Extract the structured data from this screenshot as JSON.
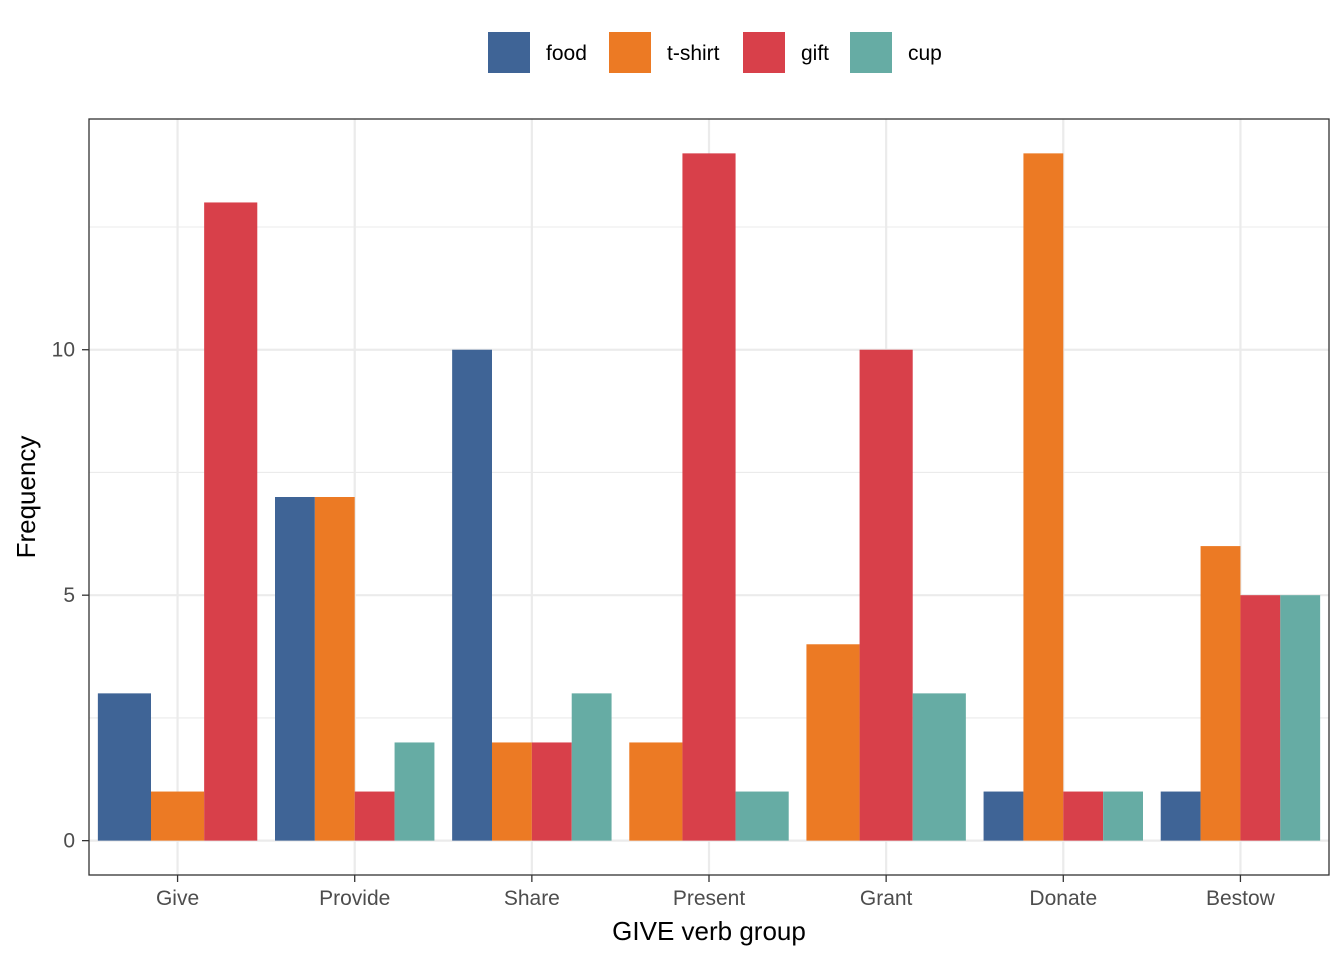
{
  "chart_data": {
    "type": "bar",
    "title": "",
    "xlabel": "GIVE verb group",
    "ylabel": "Frequency",
    "categories": [
      "Give",
      "Provide",
      "Share",
      "Present",
      "Grant",
      "Donate",
      "Bestow"
    ],
    "series": [
      {
        "name": "food",
        "color": "#3F6496",
        "values": [
          3,
          7,
          10,
          null,
          null,
          1,
          1
        ]
      },
      {
        "name": "t-shirt",
        "color": "#EC7A24",
        "values": [
          1,
          7,
          2,
          2,
          4,
          14,
          6
        ]
      },
      {
        "name": "gift",
        "color": "#D8404A",
        "values": [
          13,
          1,
          2,
          14,
          10,
          1,
          5
        ]
      },
      {
        "name": "cup",
        "color": "#66ACA4",
        "values": [
          null,
          2,
          3,
          1,
          3,
          1,
          5
        ]
      }
    ],
    "ylim": [
      -0.7,
      14.7
    ],
    "yticks": [
      0,
      5,
      10
    ],
    "grid": true,
    "legend_position": "top"
  }
}
